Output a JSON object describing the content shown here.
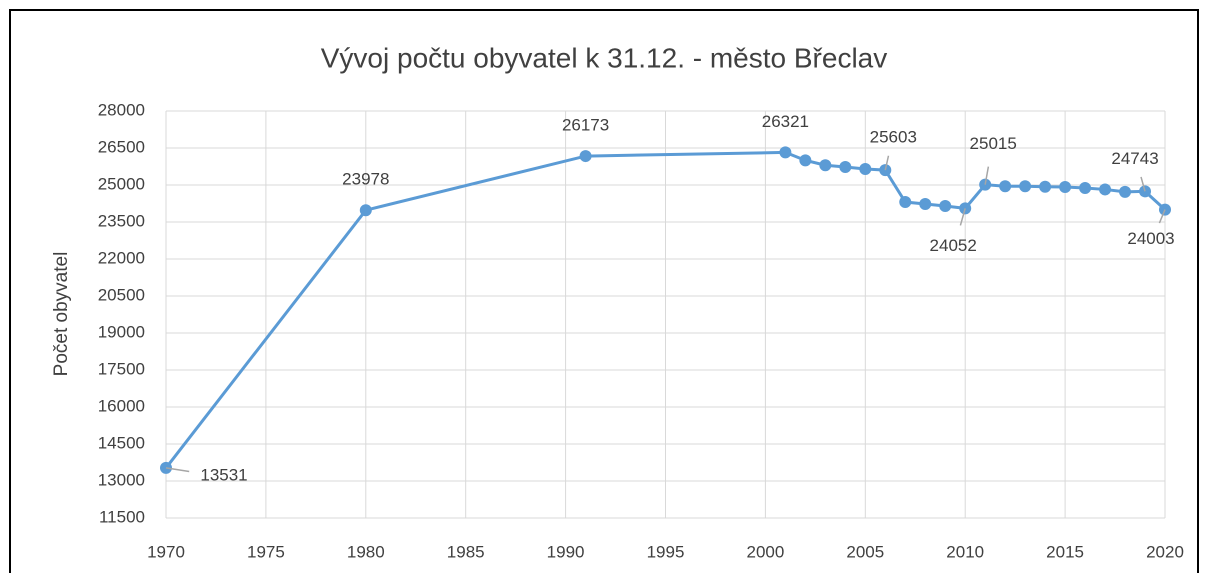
{
  "chart_data": {
    "type": "line",
    "title": "Vývoj počtu obyvatel k 31.12. - město Břeclav",
    "y_label": "Počet obyvatel",
    "x": [
      1970,
      1980,
      1991,
      2001,
      2002,
      2003,
      2004,
      2005,
      2006,
      2007,
      2008,
      2009,
      2010,
      2011,
      2012,
      2013,
      2014,
      2015,
      2016,
      2017,
      2018,
      2019,
      2020
    ],
    "series": [
      {
        "name": "Počet obyvatel",
        "color": "#5b9bd5",
        "values": [
          13531,
          23978,
          26173,
          26321,
          26000,
          25800,
          25730,
          25650,
          25603,
          24310,
          24230,
          24150,
          24052,
          25015,
          24950,
          24950,
          24930,
          24920,
          24880,
          24820,
          24720,
          24743,
          24003
        ],
        "value_labels": [
          "13531",
          "23978",
          "26173",
          "26321",
          null,
          null,
          null,
          null,
          "25603",
          null,
          null,
          null,
          "24052",
          "25015",
          null,
          null,
          null,
          null,
          null,
          null,
          null,
          "24743",
          "24003"
        ]
      }
    ],
    "xlim": [
      1970,
      2020
    ],
    "xticks": [
      1970,
      1975,
      1980,
      1985,
      1990,
      1995,
      2000,
      2005,
      2010,
      2015,
      2020
    ],
    "ylim": [
      11500,
      28000
    ],
    "yticks": [
      11500,
      13000,
      14500,
      16000,
      17500,
      19000,
      20500,
      22000,
      23500,
      25000,
      26500,
      28000
    ],
    "grid": true
  }
}
